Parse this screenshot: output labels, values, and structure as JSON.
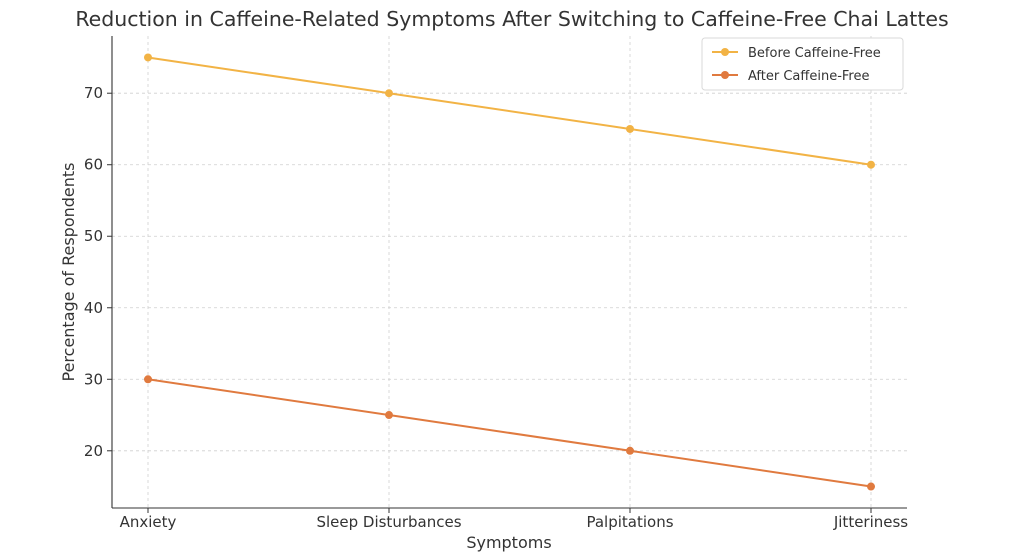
{
  "chart_data": {
    "type": "line",
    "title": "Reduction in Caffeine-Related Symptoms After Switching to Caffeine-Free Chai Lattes",
    "xlabel": "Symptoms",
    "ylabel": "Percentage of Respondents",
    "categories": [
      "Anxiety",
      "Sleep Disturbances",
      "Palpitations",
      "Jitteriness"
    ],
    "series": [
      {
        "name": "Before Caffeine-Free",
        "values": [
          75,
          70,
          65,
          60
        ],
        "color": "#f2b345"
      },
      {
        "name": "After Caffeine-Free",
        "values": [
          30,
          25,
          20,
          15
        ],
        "color": "#e07a3f"
      }
    ],
    "ylim": [
      12,
      78
    ],
    "yticks": [
      "20",
      "30",
      "40",
      "50",
      "60",
      "70"
    ],
    "grid": true,
    "legend_position": "top-right"
  }
}
